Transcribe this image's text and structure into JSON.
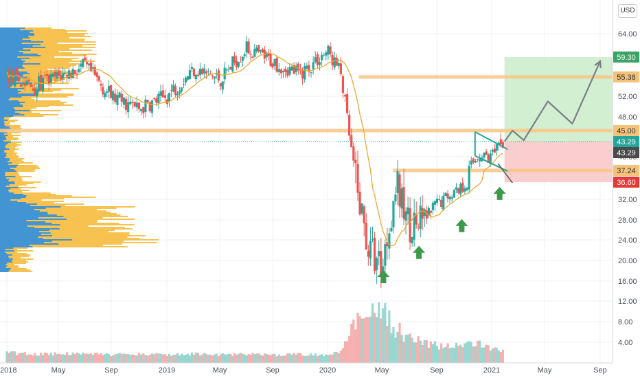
{
  "axis": {
    "currency": "USD",
    "price_ticks": [
      "64.00",
      "56.00",
      "52.00",
      "48.00",
      "40.00",
      "32.00",
      "28.00",
      "24.00",
      "20.00",
      "16.00",
      "12.00",
      "8.00",
      "4.00"
    ],
    "time_ticks": [
      "2018",
      "May",
      "Sep",
      "2019",
      "May",
      "Sep",
      "2020",
      "May",
      "Sep",
      "2021",
      "May",
      "Sep"
    ]
  },
  "levels": [
    {
      "label": "59.30",
      "color": "#3aa365",
      "text": "#ffffff"
    },
    {
      "label": "55.38",
      "color": "#f5c27a",
      "text": "#333333"
    },
    {
      "label": "45.00",
      "color": "#f5c27a",
      "text": "#333333"
    },
    {
      "label": "43.29",
      "color": "#26a69a",
      "text": "#ffffff"
    },
    {
      "label": "43.29",
      "color": "#4a4a4a",
      "text": "#ffffff"
    },
    {
      "label": "37.24",
      "color": "#f5c27a",
      "text": "#333333"
    },
    {
      "label": "36.60",
      "color": "#e53935",
      "text": "#ffffff"
    }
  ],
  "colors": {
    "up": "#26a69a",
    "down": "#ef5350",
    "ma": "#f0a830",
    "hline": "#f7c98a",
    "profile_blue": "#2e8fe0",
    "profile_orange": "#f7b731",
    "target_zone": "#c8ebc6",
    "stop_zone": "#f9c9c9",
    "arrow": "#3c9a4a",
    "channel": "#26a69a",
    "projection": "#7a7f86"
  },
  "chart_data": {
    "type": "candlestick",
    "title": "",
    "ylim": [
      2,
      67
    ],
    "price_levels": {
      "target": 59.3,
      "resistance_high": 55.38,
      "resistance": 45.0,
      "current": 43.29,
      "support": 37.24,
      "stop": 36.6
    },
    "periods": [
      "2018-01",
      "2018-03",
      "2018-05",
      "2018-07",
      "2018-09",
      "2018-11",
      "2019-01",
      "2019-03",
      "2019-05",
      "2019-07",
      "2019-09",
      "2019-11",
      "2020-01",
      "2020-02",
      "2020-03",
      "2020-04",
      "2020-05",
      "2020-06",
      "2020-07",
      "2020-08",
      "2020-09",
      "2020-10",
      "2020-11",
      "2020-12",
      "2021-01",
      "2021-02"
    ],
    "close": [
      55.8,
      53.5,
      55.5,
      57.5,
      52.0,
      49.5,
      52.0,
      57.0,
      55.0,
      61.0,
      58.5,
      56.0,
      60.5,
      56.0,
      36.0,
      22.0,
      19.0,
      35.0,
      27.0,
      27.5,
      31.0,
      33.5,
      35.5,
      40.5,
      40.0,
      43.3
    ],
    "volume": [
      2.5,
      2.0,
      2.2,
      2.1,
      1.8,
      2.0,
      1.9,
      2.0,
      1.8,
      2.0,
      1.7,
      1.9,
      1.8,
      3.5,
      13.0,
      15.0,
      17.0,
      11.0,
      7.5,
      6.0,
      5.0,
      5.5,
      5.0,
      5.5,
      4.0,
      3.5
    ],
    "projection": [
      [
        2021.08,
        43.3
      ],
      [
        2021.13,
        45.0
      ],
      [
        2021.2,
        43.5
      ],
      [
        2021.35,
        51.0
      ],
      [
        2021.5,
        46.5
      ],
      [
        2021.72,
        58.5
      ]
    ]
  }
}
